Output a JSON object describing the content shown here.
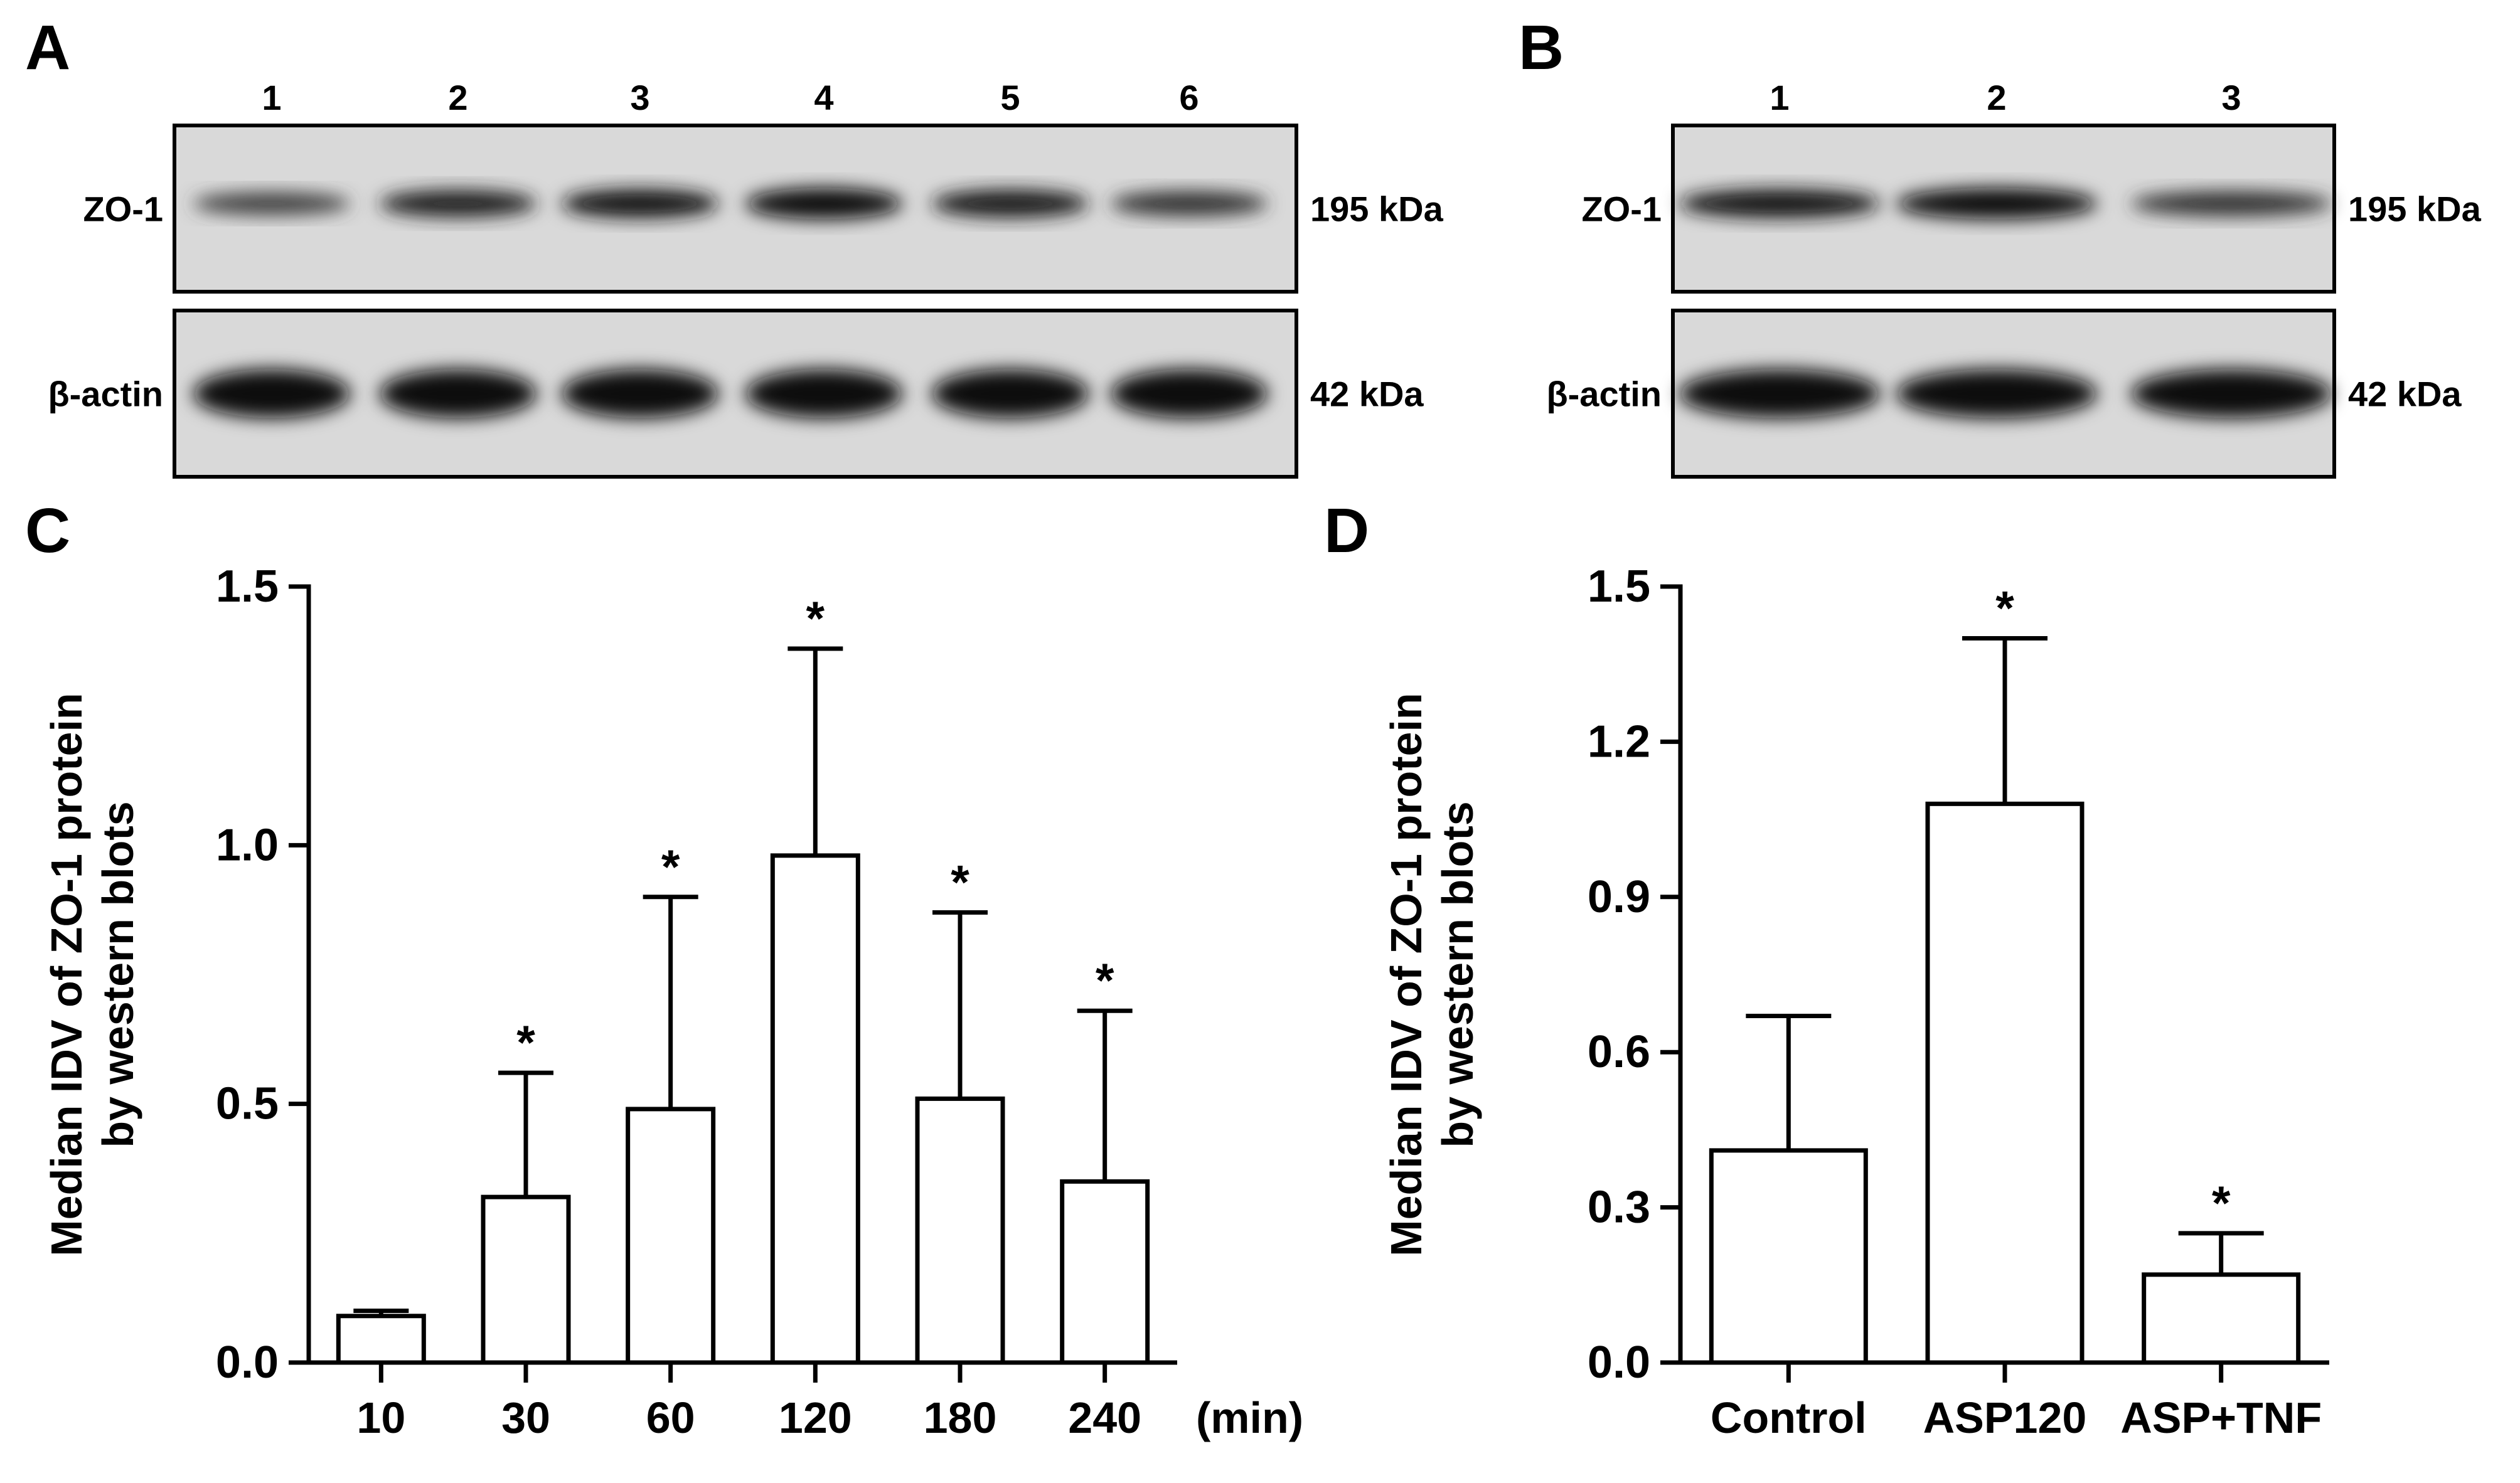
{
  "panels": {
    "A": {
      "letter": "A",
      "lanes": [
        "1",
        "2",
        "3",
        "4",
        "5",
        "6"
      ],
      "rows": [
        {
          "label": "ZO-1",
          "size": "195 kDa",
          "intensity": [
            0.45,
            0.75,
            0.85,
            1.0,
            0.8,
            0.6
          ]
        },
        {
          "label": "β-actin",
          "size": "42 kDa",
          "intensity": [
            1.0,
            1.0,
            1.0,
            1.0,
            1.0,
            1.0
          ]
        }
      ]
    },
    "B": {
      "letter": "B",
      "lanes": [
        "1",
        "2",
        "3"
      ],
      "rows": [
        {
          "label": "ZO-1",
          "size": "195 kDa",
          "intensity": [
            0.85,
            1.0,
            0.6
          ]
        },
        {
          "label": "β-actin",
          "size": "42 kDa",
          "intensity": [
            1.0,
            1.0,
            1.0
          ]
        }
      ]
    },
    "C": {
      "letter": "C"
    },
    "D": {
      "letter": "D"
    }
  },
  "chart_data": [
    {
      "type": "bar",
      "panel": "C",
      "categories": [
        "10",
        "30",
        "60",
        "120",
        "180",
        "240"
      ],
      "x_unit": "(min)",
      "values": [
        0.09,
        0.32,
        0.49,
        0.98,
        0.51,
        0.35
      ],
      "error_upper": [
        0.1,
        0.56,
        0.9,
        1.38,
        0.87,
        0.68
      ],
      "significance": [
        "",
        "*",
        "*",
        "*",
        "*",
        "*"
      ],
      "ylabel_lines": [
        "Median IDV of ZO-1 protein",
        "by western blots"
      ],
      "ylim": [
        0,
        1.5
      ],
      "yticks": [
        "0.0",
        "0.5",
        "1.0",
        "1.5"
      ],
      "ytick_values": [
        0,
        0.5,
        1.0,
        1.5
      ]
    },
    {
      "type": "bar",
      "panel": "D",
      "categories": [
        "Control",
        "ASP120",
        "ASP+TNF"
      ],
      "values": [
        0.41,
        1.08,
        0.17
      ],
      "error_upper": [
        0.67,
        1.4,
        0.25
      ],
      "significance": [
        "",
        "*",
        "*"
      ],
      "ylabel_lines": [
        "Median IDV of ZO-1 protein",
        "by western blots"
      ],
      "ylim": [
        0,
        1.5
      ],
      "yticks": [
        "0.0",
        "0.3",
        "0.6",
        "0.9",
        "1.2",
        "1.5"
      ],
      "ytick_values": [
        0,
        0.3,
        0.6,
        0.9,
        1.2,
        1.5
      ]
    }
  ]
}
